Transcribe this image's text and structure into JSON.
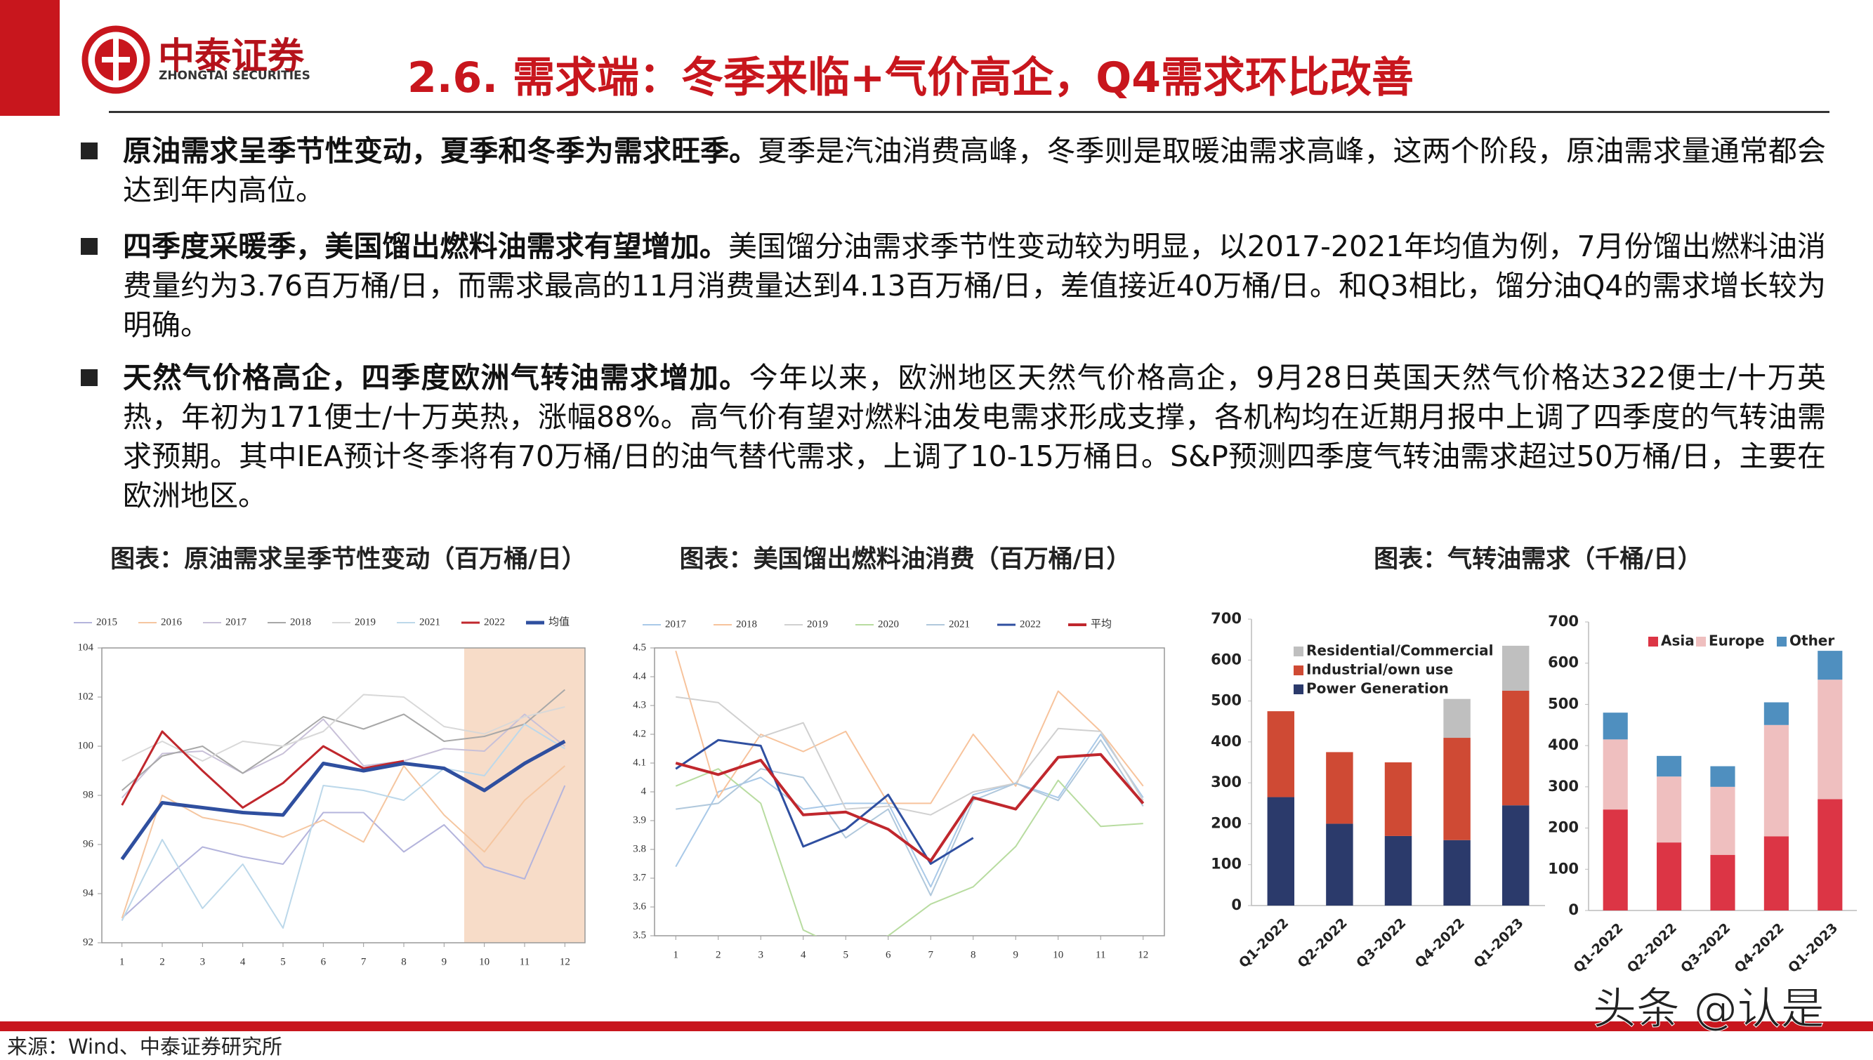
{
  "header": {
    "logo_name": "中泰证券",
    "logo_sub": "ZHONGTAI SECURITIES",
    "title": "2.6. 需求端：冬季来临+气价高企，Q4需求环比改善"
  },
  "bullets": [
    {
      "bold": "原油需求呈季节性变动，夏季和冬季为需求旺季。",
      "text": "夏季是汽油消费高峰，冬季则是取暖油需求高峰，这两个阶段，原油需求量通常都会达到年内高位。"
    },
    {
      "bold": "四季度采暖季，美国馏出燃料油需求有望增加。",
      "text": "美国馏分油需求季节性变动较为明显，以2017-2021年均值为例，7月份馏出燃料油消费量约为3.76百万桶/日，而需求最高的11月消费量达到4.13百万桶/日，差值接近40万桶/日。和Q3相比，馏分油Q4的需求增长较为明确。"
    },
    {
      "bold": "天然气价格高企，四季度欧洲气转油需求增加。",
      "text": "今年以来，欧洲地区天然气价格高企，9月28日英国天然气价格达322便士/十万英热，年初为171便士/十万英热，涨幅88%。高气价有望对燃料油发电需求形成支撑，各机构均在近期月报中上调了四季度的气转油需求预期。其中IEA预计冬季将有70万桶/日的油气替代需求，上调了10-15万桶日。S&P预测四季度气转油需求超过50万桶/日，主要在欧洲地区。"
    }
  ],
  "chart_data": [
    {
      "type": "line",
      "title": "图表：原油需求呈季节性变动（百万桶/日）",
      "x": [
        1,
        2,
        3,
        4,
        5,
        6,
        7,
        8,
        9,
        10,
        11,
        12
      ],
      "xlim": [
        0.5,
        12.5
      ],
      "ylim": [
        92,
        104
      ],
      "yticks": [
        92,
        94,
        96,
        98,
        100,
        102,
        104
      ],
      "series": [
        {
          "name": "2015",
          "color": "#b4b4dc",
          "width": 2,
          "values": [
            93.0,
            94.5,
            95.9,
            95.5,
            95.2,
            97.3,
            97.3,
            95.7,
            96.8,
            95.1,
            94.6,
            98.4
          ]
        },
        {
          "name": "2016",
          "color": "#f5c6a0",
          "width": 2,
          "values": [
            93.0,
            98.0,
            97.1,
            96.8,
            96.3,
            97.0,
            96.1,
            99.2,
            97.2,
            95.7,
            97.8,
            99.2
          ]
        },
        {
          "name": "2017",
          "color": "#c8c0d8",
          "width": 2,
          "values": [
            97.9,
            99.7,
            99.8,
            98.9,
            99.7,
            101.1,
            99.2,
            99.4,
            99.9,
            99.8,
            101.3,
            100.0
          ]
        },
        {
          "name": "2018",
          "color": "#a8a8a8",
          "width": 2,
          "values": [
            98.2,
            99.6,
            100.0,
            98.9,
            100.0,
            101.2,
            100.7,
            101.3,
            100.2,
            100.4,
            100.9,
            102.3
          ]
        },
        {
          "name": "2019",
          "color": "#d8d8d8",
          "width": 2,
          "values": [
            99.4,
            100.2,
            99.4,
            100.2,
            100.0,
            100.6,
            102.1,
            102.0,
            100.8,
            100.5,
            101.2,
            101.6
          ]
        },
        {
          "name": "2021",
          "color": "#bcd8ea",
          "width": 2,
          "values": [
            92.9,
            96.2,
            93.4,
            95.2,
            92.6,
            98.4,
            98.2,
            97.8,
            99.1,
            98.8,
            100.9,
            99.9
          ]
        },
        {
          "name": "2022",
          "color": "#c0272d",
          "width": 3,
          "values": [
            97.6,
            100.6,
            99.0,
            97.5,
            98.5,
            100.0,
            99.1,
            99.4,
            null,
            null,
            null,
            null
          ]
        },
        {
          "name": "均值",
          "color": "#2f4f9f",
          "width": 5,
          "values": [
            95.4,
            97.7,
            97.5,
            97.3,
            97.2,
            99.3,
            99.0,
            99.3,
            99.1,
            98.2,
            99.3,
            100.2
          ]
        }
      ]
    },
    {
      "type": "line",
      "title": "图表：美国馏出燃料油消费（百万桶/日）",
      "x": [
        1,
        2,
        3,
        4,
        5,
        6,
        7,
        8,
        9,
        10,
        11,
        12
      ],
      "xlim": [
        0.5,
        12.5
      ],
      "ylim": [
        3.5,
        4.5
      ],
      "yticks": [
        3.5,
        3.6,
        3.7,
        3.8,
        3.9,
        4,
        4.1,
        4.2,
        4.3,
        4.4,
        4.5
      ],
      "series": [
        {
          "name": "2017",
          "color": "#a9c9e8",
          "width": 2,
          "values": [
            3.74,
            4.0,
            4.05,
            3.94,
            3.96,
            3.96,
            3.67,
            3.99,
            4.03,
            3.98,
            4.2,
            3.98
          ]
        },
        {
          "name": "2018",
          "color": "#f7c39c",
          "width": 2,
          "values": [
            4.49,
            3.98,
            4.2,
            4.14,
            4.21,
            3.96,
            3.96,
            4.2,
            4.02,
            4.35,
            4.21,
            4.02
          ]
        },
        {
          "name": "2019",
          "color": "#d0d0d0",
          "width": 2,
          "values": [
            4.33,
            4.31,
            4.19,
            4.24,
            3.94,
            3.95,
            3.92,
            4.0,
            4.03,
            4.22,
            4.21,
            3.97
          ]
        },
        {
          "name": "2020",
          "color": "#b8dca0",
          "width": 2,
          "values": [
            4.02,
            4.08,
            3.96,
            3.52,
            3.45,
            3.5,
            3.61,
            3.67,
            3.81,
            4.04,
            3.88,
            3.89
          ]
        },
        {
          "name": "2021",
          "color": "#b0c8dc",
          "width": 2,
          "values": [
            3.94,
            3.96,
            4.08,
            4.05,
            3.84,
            3.94,
            3.64,
            3.97,
            4.03,
            3.97,
            4.18,
            3.95
          ]
        },
        {
          "name": "2022",
          "color": "#2f4fa0",
          "width": 3,
          "values": [
            4.08,
            4.18,
            4.16,
            3.81,
            3.87,
            3.99,
            3.75,
            3.84,
            null,
            null,
            null,
            null
          ]
        },
        {
          "name": "平均",
          "color": "#c0272d",
          "width": 4,
          "values": [
            4.1,
            4.06,
            4.11,
            3.92,
            3.93,
            3.87,
            3.76,
            3.98,
            3.94,
            4.12,
            4.13,
            3.96
          ]
        }
      ]
    },
    {
      "type": "stacked_bar",
      "categories": [
        "Q1-2022",
        "Q2-2022",
        "Q3-2022",
        "Q4-2022",
        "Q1-2023"
      ],
      "ylim": [
        0,
        700
      ],
      "yticks": [
        0,
        100,
        200,
        300,
        400,
        500,
        600,
        700
      ],
      "series": [
        {
          "name": "Power Generation",
          "color": "#2b3a6b",
          "values": [
            265,
            200,
            170,
            160,
            245
          ]
        },
        {
          "name": "Industrial/own use",
          "color": "#cf4a34",
          "values": [
            210,
            175,
            180,
            250,
            280
          ]
        },
        {
          "name": "Residential/Commercial",
          "color": "#bfbfbf",
          "values": [
            0,
            0,
            0,
            95,
            110
          ]
        }
      ]
    },
    {
      "type": "stacked_bar",
      "title": "图表：气转油需求（千桶/日）",
      "categories": [
        "Q1-2022",
        "Q2-2022",
        "Q3-2022",
        "Q4-2022",
        "Q1-2023"
      ],
      "ylim": [
        0,
        700
      ],
      "yticks": [
        0,
        100,
        200,
        300,
        400,
        500,
        600,
        700
      ],
      "series": [
        {
          "name": "Asia",
          "color": "#dc3545",
          "values": [
            245,
            165,
            135,
            180,
            270
          ]
        },
        {
          "name": "Europe",
          "color": "#efbfbf",
          "values": [
            170,
            160,
            165,
            270,
            290
          ]
        },
        {
          "name": "Other",
          "color": "#4f8fbf",
          "values": [
            65,
            50,
            50,
            55,
            70
          ]
        }
      ]
    }
  ],
  "footer": {
    "source": "来源：Wind、中泰证券研究所",
    "watermark": "头条 @认是"
  }
}
